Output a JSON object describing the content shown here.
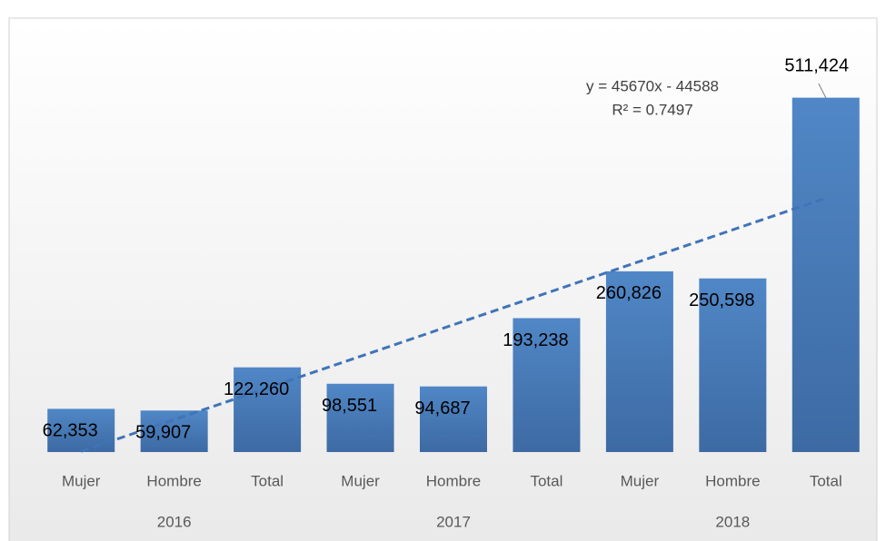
{
  "chart_data": {
    "type": "bar",
    "categories": [
      "Mujer",
      "Hombre",
      "Total",
      "Mujer",
      "Hombre",
      "Total",
      "Mujer",
      "Hombre",
      "Total"
    ],
    "groups": [
      "2016",
      "2017",
      "2018"
    ],
    "values": [
      62353,
      59907,
      122260,
      98551,
      94687,
      193238,
      260826,
      250598,
      511424
    ],
    "value_labels": [
      "62,353",
      "59,907",
      "122,260",
      "98,551",
      "94,687",
      "193,238",
      "260,826",
      "250,598",
      "511,424"
    ],
    "color": "#4a7ebb",
    "ylim": [
      0,
      600000
    ],
    "trendline": {
      "slope": 45670,
      "intercept": -44588,
      "color": "#3f74b8",
      "equation": "y = 45670x - 44588",
      "r2": "R² = 0.7497"
    }
  }
}
